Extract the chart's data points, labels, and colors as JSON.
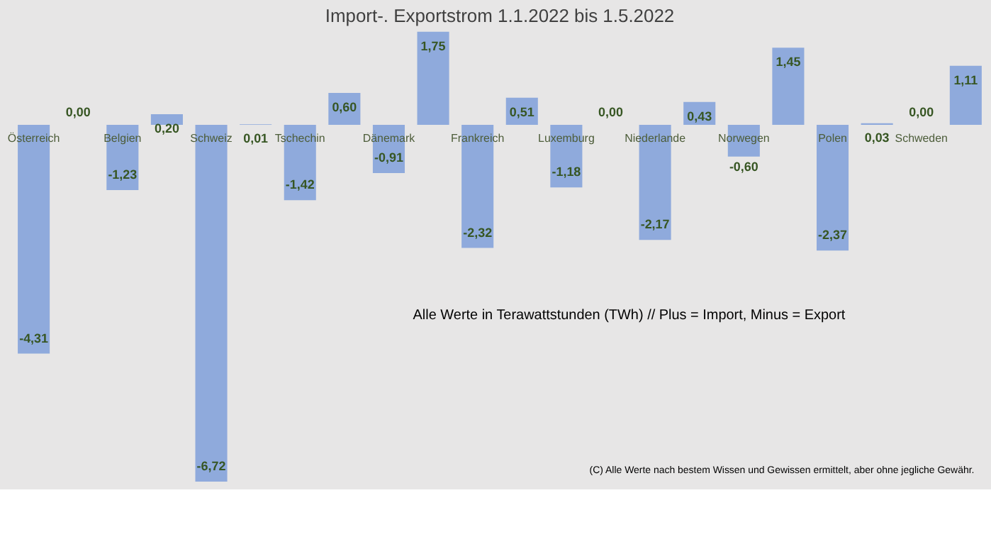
{
  "chart_data": {
    "type": "bar",
    "title": "Import-. Exportstrom 1.1.2022 bis  1.5.2022",
    "categories": [
      "Österreich",
      null,
      "Belgien",
      null,
      "Schweiz",
      null,
      "Tschechin",
      null,
      "Dänemark",
      null,
      "Frankreich",
      null,
      "Luxemburg",
      null,
      "Niederlande",
      null,
      "Norwegen",
      null,
      "Polen",
      null,
      "Schweden",
      null
    ],
    "values": [
      -4.31,
      0.0,
      -1.23,
      0.2,
      -6.72,
      0.01,
      -1.42,
      0.6,
      -0.91,
      1.75,
      -2.32,
      0.51,
      -1.18,
      0.0,
      -2.17,
      0.43,
      -0.6,
      1.45,
      -2.37,
      0.03,
      0.0,
      1.11
    ],
    "value_labels": [
      "-4,31",
      "0,00",
      "-1,23",
      "0,20",
      "-6,72",
      "0,01",
      "-1,42",
      "0,60",
      "-0,91",
      "1,75",
      "-2,32",
      "0,51",
      "-1,18",
      "0,00",
      "-2,17",
      "0,43",
      "-0,60",
      "1,45",
      "-2,37",
      "0,03",
      "0,00",
      "1,11"
    ],
    "color": "#8faadc",
    "annotations": [
      "Alle Werte in Terawattstunden (TWh) // Plus = Import, Minus = Export",
      "(C) Alle Werte nach bestem Wissen und Gewissen ermittelt, aber ohne jegliche Gewähr."
    ],
    "grid": false
  }
}
